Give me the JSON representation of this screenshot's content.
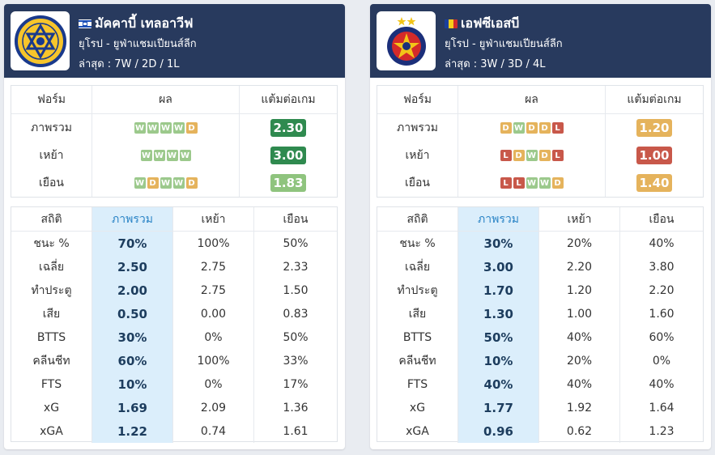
{
  "teams": [
    {
      "name": "มัคคาบี้ เทลอาวีฟ",
      "flag": "israel-flag",
      "league": "ยุโรป - ยูฟ่าแชมเปียนส์ลีก",
      "recent": "ล่าสุด : 7W / 2D / 1L",
      "form_headers": [
        "ฟอร์ม",
        "ผล",
        "แต้มต่อเกม"
      ],
      "form_rows": [
        {
          "label": "ภาพรวม",
          "results": [
            "W",
            "W",
            "W",
            "W",
            "D"
          ],
          "ppg": "2.30",
          "ppg_color": "#2f8a4f"
        },
        {
          "label": "เหย้า",
          "results": [
            "W",
            "W",
            "W",
            "W"
          ],
          "ppg": "3.00",
          "ppg_color": "#2f8a4f"
        },
        {
          "label": "เยือน",
          "results": [
            "W",
            "D",
            "W",
            "W",
            "D"
          ],
          "ppg": "1.83",
          "ppg_color": "#8fc47e"
        }
      ],
      "stats_headers": [
        "สถิติ",
        "ภาพรวม",
        "เหย้า",
        "เยือน"
      ],
      "stats_rows": [
        {
          "label": "ชนะ %",
          "overall": "70%",
          "home": "100%",
          "away": "50%"
        },
        {
          "label": "เฉลี่ย",
          "overall": "2.50",
          "home": "2.75",
          "away": "2.33"
        },
        {
          "label": "ทำประตู",
          "overall": "2.00",
          "home": "2.75",
          "away": "1.50"
        },
        {
          "label": "เสีย",
          "overall": "0.50",
          "home": "0.00",
          "away": "0.83"
        },
        {
          "label": "BTTS",
          "overall": "30%",
          "home": "0%",
          "away": "50%"
        },
        {
          "label": "คลีนชีท",
          "overall": "60%",
          "home": "100%",
          "away": "33%"
        },
        {
          "label": "FTS",
          "overall": "10%",
          "home": "0%",
          "away": "17%"
        },
        {
          "label": "xG",
          "overall": "1.69",
          "home": "2.09",
          "away": "1.36"
        },
        {
          "label": "xGA",
          "overall": "1.22",
          "home": "0.74",
          "away": "1.61"
        }
      ]
    },
    {
      "name": "เอฟซีเอสบี",
      "flag": "romania-flag",
      "league": "ยุโรป - ยูฟ่าแชมเปียนส์ลีก",
      "recent": "ล่าสุด : 3W / 3D / 4L",
      "form_headers": [
        "ฟอร์ม",
        "ผล",
        "แต้มต่อเกม"
      ],
      "form_rows": [
        {
          "label": "ภาพรวม",
          "results": [
            "D",
            "W",
            "D",
            "D",
            "L"
          ],
          "ppg": "1.20",
          "ppg_color": "#e5b35c"
        },
        {
          "label": "เหย้า",
          "results": [
            "L",
            "D",
            "W",
            "D",
            "L"
          ],
          "ppg": "1.00",
          "ppg_color": "#c8584a"
        },
        {
          "label": "เยือน",
          "results": [
            "L",
            "L",
            "W",
            "W",
            "D"
          ],
          "ppg": "1.40",
          "ppg_color": "#e5b35c"
        }
      ],
      "stats_headers": [
        "สถิติ",
        "ภาพรวม",
        "เหย้า",
        "เยือน"
      ],
      "stats_rows": [
        {
          "label": "ชนะ %",
          "overall": "30%",
          "home": "20%",
          "away": "40%"
        },
        {
          "label": "เฉลี่ย",
          "overall": "3.00",
          "home": "2.20",
          "away": "3.80"
        },
        {
          "label": "ทำประตู",
          "overall": "1.70",
          "home": "1.20",
          "away": "2.20"
        },
        {
          "label": "เสีย",
          "overall": "1.30",
          "home": "1.00",
          "away": "1.60"
        },
        {
          "label": "BTTS",
          "overall": "50%",
          "home": "40%",
          "away": "60%"
        },
        {
          "label": "คลีนชีท",
          "overall": "10%",
          "home": "20%",
          "away": "0%"
        },
        {
          "label": "FTS",
          "overall": "40%",
          "home": "40%",
          "away": "40%"
        },
        {
          "label": "xG",
          "overall": "1.77",
          "home": "1.92",
          "away": "1.64"
        },
        {
          "label": "xGA",
          "overall": "0.96",
          "home": "0.62",
          "away": "1.23"
        }
      ]
    }
  ],
  "colors": {
    "header_bg": "#283a5e",
    "win": "#9cc98c",
    "draw": "#e5b35c",
    "loss": "#c8584a",
    "overall_col_bg": "#dbeefb",
    "overall_header_text": "#2a84c6"
  }
}
